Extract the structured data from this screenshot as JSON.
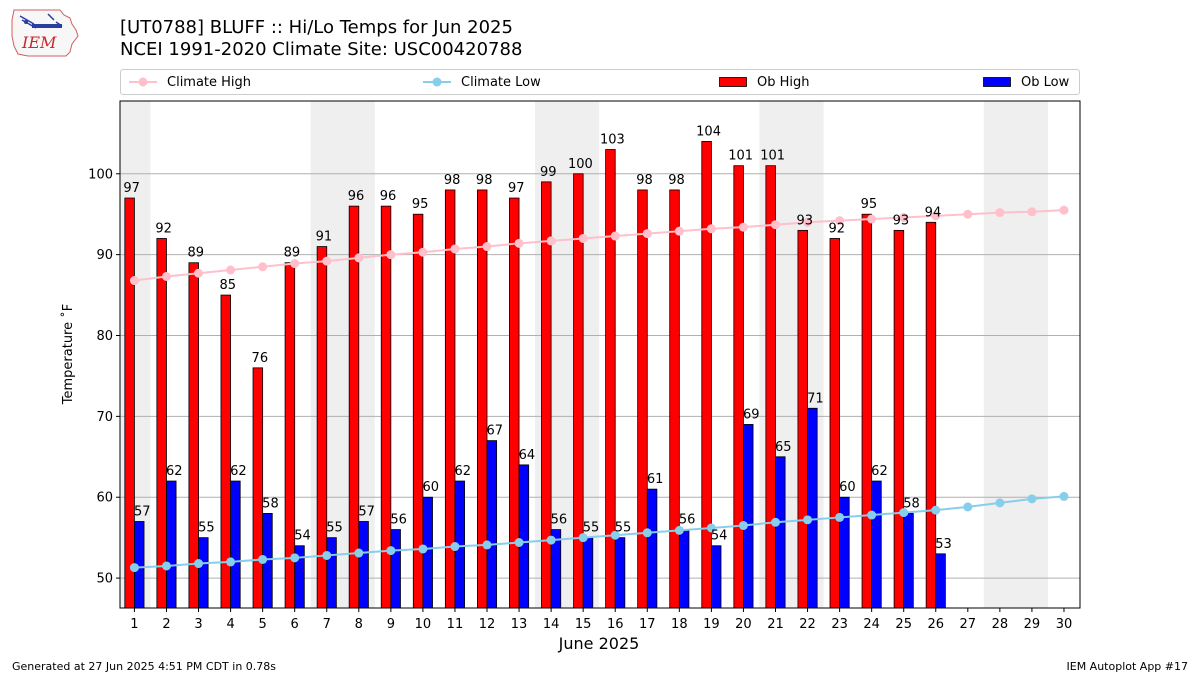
{
  "logo_text": "IEM",
  "title_line1": "[UT0788] BLUFF :: Hi/Lo Temps for Jun 2025",
  "title_line2": "NCEI 1991-2020 Climate Site: USC00420788",
  "footer_left": "Generated at 27 Jun 2025 4:51 PM CDT in 0.78s",
  "footer_right": "IEM Autoplot App #17",
  "legend": [
    {
      "label": "Climate High",
      "kind": "line",
      "color": "#ffc0cb"
    },
    {
      "label": "Climate Low",
      "kind": "line",
      "color": "#87ceeb"
    },
    {
      "label": "Ob High",
      "kind": "bar",
      "color": "#ff0000"
    },
    {
      "label": "Ob Low",
      "kind": "bar",
      "color": "#0000ff"
    }
  ],
  "chart_data": {
    "type": "bar",
    "title": "[UT0788] BLUFF :: Hi/Lo Temps for Jun 2025",
    "subtitle": "NCEI 1991-2020 Climate Site: USC00420788",
    "xlabel": "June 2025",
    "ylabel": "Temperature ˚F",
    "ylim": [
      46.3,
      109.0
    ],
    "xlim": [
      0.55,
      30.5
    ],
    "yticks": [
      50,
      60,
      70,
      80,
      90,
      100
    ],
    "grid": "horizontal",
    "legend_position": "top",
    "days": [
      1,
      2,
      3,
      4,
      5,
      6,
      7,
      8,
      9,
      10,
      11,
      12,
      13,
      14,
      15,
      16,
      17,
      18,
      19,
      20,
      21,
      22,
      23,
      24,
      25,
      26,
      27,
      28,
      29,
      30
    ],
    "weekend_shading": [
      [
        0.5,
        1.5
      ],
      [
        6.5,
        8.5
      ],
      [
        13.5,
        15.5
      ],
      [
        20.5,
        22.5
      ],
      [
        27.5,
        29.5
      ]
    ],
    "series": [
      {
        "name": "Ob High",
        "kind": "bar",
        "color": "#ff0000",
        "values": [
          97,
          92,
          89,
          85,
          76,
          89,
          91,
          96,
          96,
          95,
          98,
          98,
          97,
          99,
          100,
          103,
          98,
          98,
          104,
          101,
          101,
          93,
          92,
          95,
          93,
          94,
          null,
          null,
          null,
          null
        ]
      },
      {
        "name": "Ob Low",
        "kind": "bar",
        "color": "#0000ff",
        "values": [
          57,
          62,
          55,
          62,
          58,
          54,
          55,
          57,
          56,
          60,
          62,
          67,
          64,
          56,
          55,
          55,
          61,
          56,
          54,
          69,
          65,
          71,
          60,
          62,
          58,
          53,
          null,
          null,
          null,
          null
        ]
      },
      {
        "name": "Climate High",
        "kind": "line",
        "color": "#ffc0cb",
        "values": [
          86.8,
          87.3,
          87.7,
          88.1,
          88.5,
          88.9,
          89.2,
          89.6,
          90.0,
          90.3,
          90.7,
          91.0,
          91.4,
          91.7,
          92.0,
          92.3,
          92.6,
          92.9,
          93.2,
          93.4,
          93.7,
          94.0,
          94.2,
          94.4,
          94.6,
          94.8,
          95.0,
          95.2,
          95.3,
          95.5
        ]
      },
      {
        "name": "Climate Low",
        "kind": "line",
        "color": "#87ceeb",
        "values": [
          51.3,
          51.5,
          51.8,
          52.0,
          52.3,
          52.5,
          52.8,
          53.1,
          53.4,
          53.6,
          53.9,
          54.1,
          54.4,
          54.7,
          55.0,
          55.3,
          55.6,
          55.9,
          56.2,
          56.5,
          56.9,
          57.2,
          57.5,
          57.8,
          58.1,
          58.4,
          58.8,
          59.3,
          59.8,
          60.1
        ]
      }
    ]
  }
}
